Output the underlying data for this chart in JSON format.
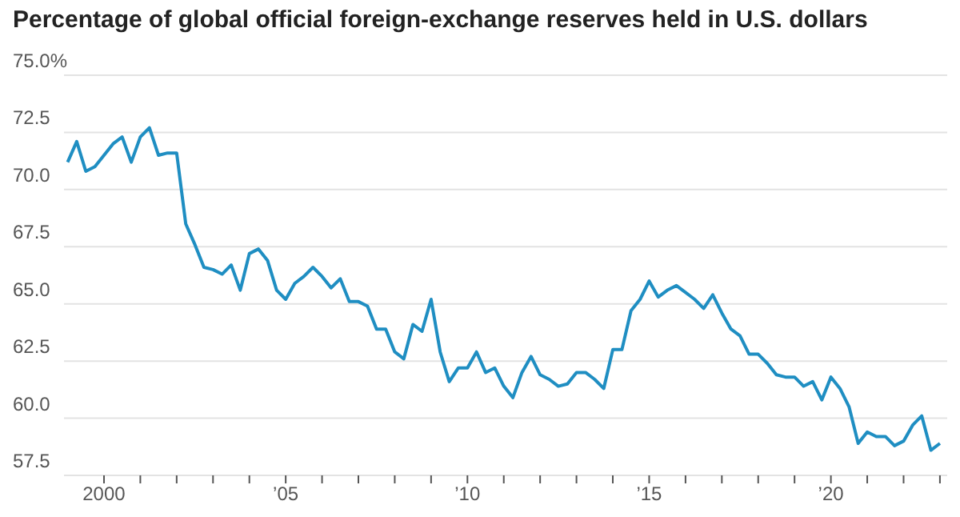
{
  "chart_data": {
    "type": "line",
    "title": "Percentage of global official foreign-exchange reserves held in U.S. dollars",
    "x": [
      1999,
      1999.25,
      1999.5,
      1999.75,
      2000,
      2000.25,
      2000.5,
      2000.75,
      2001,
      2001.25,
      2001.5,
      2001.75,
      2002,
      2002.25,
      2002.5,
      2002.75,
      2003,
      2003.25,
      2003.5,
      2003.75,
      2004,
      2004.25,
      2004.5,
      2004.75,
      2005,
      2005.25,
      2005.5,
      2005.75,
      2006,
      2006.25,
      2006.5,
      2006.75,
      2007,
      2007.25,
      2007.5,
      2007.75,
      2008,
      2008.25,
      2008.5,
      2008.75,
      2009,
      2009.25,
      2009.5,
      2009.75,
      2010,
      2010.25,
      2010.5,
      2010.75,
      2011,
      2011.25,
      2011.5,
      2011.75,
      2012,
      2012.25,
      2012.5,
      2012.75,
      2013,
      2013.25,
      2013.5,
      2013.75,
      2014,
      2014.25,
      2014.5,
      2014.75,
      2015,
      2015.25,
      2015.5,
      2015.75,
      2016,
      2016.25,
      2016.5,
      2016.75,
      2017,
      2017.25,
      2017.5,
      2017.75,
      2018,
      2018.25,
      2018.5,
      2018.75,
      2019,
      2019.25,
      2019.5,
      2019.75,
      2020,
      2020.25,
      2020.5,
      2020.75,
      2021,
      2021.25,
      2021.5,
      2021.75,
      2022,
      2022.25,
      2022.5,
      2022.75,
      2023
    ],
    "series": [
      {
        "color": "#1f8ec2",
        "values": [
          71.2,
          72.1,
          70.8,
          71.0,
          71.5,
          72.0,
          72.3,
          71.2,
          72.3,
          72.7,
          71.5,
          71.6,
          71.6,
          68.5,
          67.6,
          66.6,
          66.5,
          66.3,
          66.7,
          65.6,
          67.2,
          67.4,
          66.9,
          65.6,
          65.2,
          65.9,
          66.2,
          66.6,
          66.2,
          65.7,
          66.1,
          65.1,
          65.1,
          64.9,
          63.9,
          63.9,
          62.9,
          62.6,
          64.1,
          63.8,
          65.2,
          62.9,
          61.6,
          62.2,
          62.2,
          62.9,
          62.0,
          62.2,
          61.4,
          60.9,
          62.0,
          62.7,
          61.9,
          61.7,
          61.4,
          61.5,
          62.0,
          62.0,
          61.7,
          61.3,
          63.0,
          63.0,
          64.7,
          65.2,
          66.0,
          65.3,
          65.6,
          65.8,
          65.5,
          65.2,
          64.8,
          65.4,
          64.6,
          63.9,
          63.6,
          62.8,
          62.8,
          62.4,
          61.9,
          61.8,
          61.8,
          61.4,
          61.6,
          60.8,
          61.8,
          61.3,
          60.5,
          58.9,
          59.4,
          59.2,
          59.2,
          58.8,
          59.0,
          59.7,
          60.1,
          58.6,
          58.9
        ]
      }
    ],
    "xlim": [
      1998.9,
      2023.2
    ],
    "xticks": [
      {
        "value": 2000,
        "label": "2000"
      },
      {
        "value": 2001,
        "label": null
      },
      {
        "value": 2002,
        "label": null
      },
      {
        "value": 2003,
        "label": null
      },
      {
        "value": 2004,
        "label": null
      },
      {
        "value": 2005,
        "label": "’05"
      },
      {
        "value": 2006,
        "label": null
      },
      {
        "value": 2007,
        "label": null
      },
      {
        "value": 2008,
        "label": null
      },
      {
        "value": 2009,
        "label": null
      },
      {
        "value": 2010,
        "label": "’10"
      },
      {
        "value": 2011,
        "label": null
      },
      {
        "value": 2012,
        "label": null
      },
      {
        "value": 2013,
        "label": null
      },
      {
        "value": 2014,
        "label": null
      },
      {
        "value": 2015,
        "label": "’15"
      },
      {
        "value": 2016,
        "label": null
      },
      {
        "value": 2017,
        "label": null
      },
      {
        "value": 2018,
        "label": null
      },
      {
        "value": 2019,
        "label": null
      },
      {
        "value": 2020,
        "label": "’20"
      },
      {
        "value": 2021,
        "label": null
      },
      {
        "value": 2022,
        "label": null
      },
      {
        "value": 2023,
        "label": null
      }
    ],
    "ylim": [
      57.5,
      75
    ],
    "yticks": [
      {
        "value": 57.5,
        "label": "57.5"
      },
      {
        "value": 60,
        "label": "60.0"
      },
      {
        "value": 62.5,
        "label": "62.5"
      },
      {
        "value": 65,
        "label": "65.0"
      },
      {
        "value": 67.5,
        "label": "67.5"
      },
      {
        "value": 70,
        "label": "70.0"
      },
      {
        "value": 72.5,
        "label": "72.5"
      },
      {
        "value": 75,
        "label": "75.0%"
      }
    ],
    "grid": "y",
    "marker": "none",
    "line_style": "solid",
    "legend": false
  }
}
